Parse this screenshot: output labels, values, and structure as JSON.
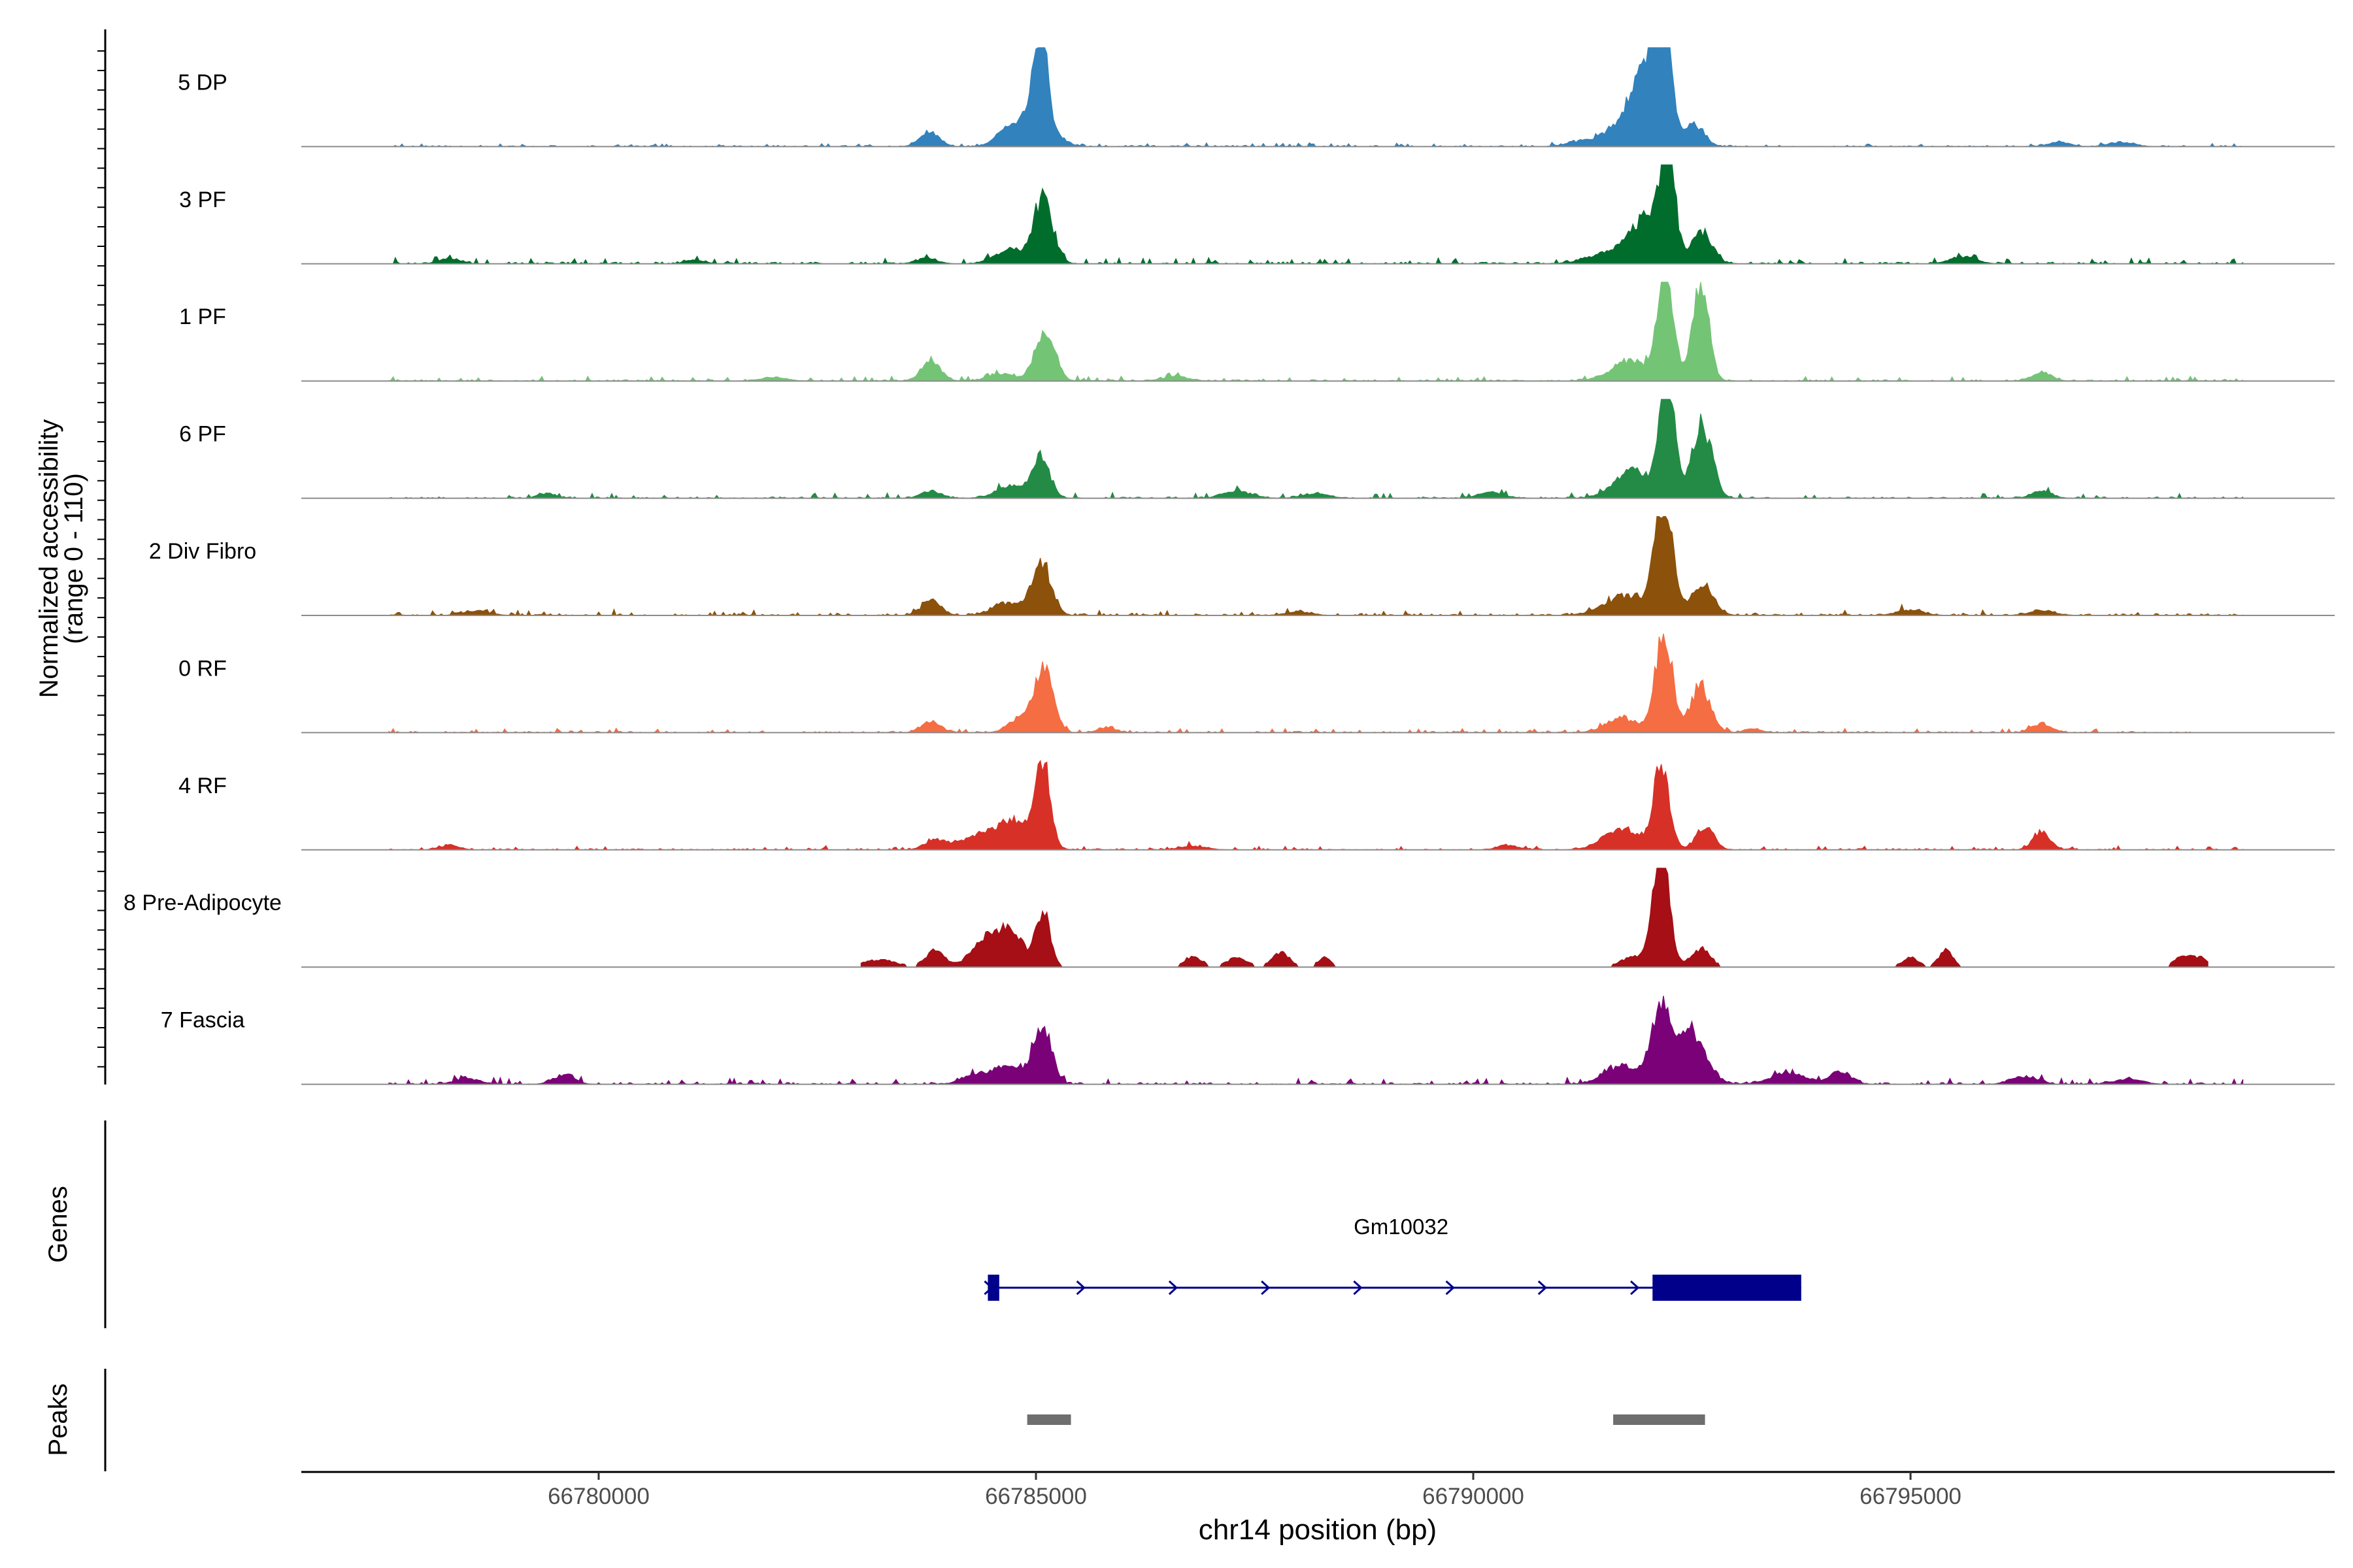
{
  "chart_data": {
    "type": "area",
    "ylabel_line1": "Normalized accessibility",
    "ylabel_line2": "(range 0 - 110)",
    "xlabel": "chr14 position (bp)",
    "xlim": [
      66776600,
      66799850
    ],
    "ylim": [
      0,
      110
    ],
    "x_ticks": [
      {
        "value": 66780000,
        "label": "66780000"
      },
      {
        "value": 66785000,
        "label": "66785000"
      },
      {
        "value": 66790000,
        "label": "66790000"
      },
      {
        "value": 66795000,
        "label": "66795000"
      }
    ],
    "tracks": [
      {
        "name": "5 DP",
        "color": "#3182bd",
        "range": [
          66777600,
          66798800
        ],
        "noise": 2,
        "noise_base": 1.5,
        "peaks": [
          [
            66785050,
            110,
            70
          ],
          [
            66785000,
            42,
            180
          ],
          [
            66784650,
            14,
            130
          ],
          [
            66783780,
            16,
            110
          ],
          [
            66792180,
            120,
            80
          ],
          [
            66792020,
            62,
            160
          ],
          [
            66791860,
            38,
            230
          ],
          [
            66792530,
            24,
            110
          ],
          [
            66791300,
            6,
            200
          ],
          [
            66796700,
            5,
            120
          ],
          [
            66797400,
            5,
            140
          ]
        ]
      },
      {
        "name": "3 PF",
        "color": "#006d2c",
        "range": [
          66777600,
          66798800
        ],
        "noise": 3.5,
        "noise_base": 2,
        "peaks": [
          [
            66785080,
            72,
            110
          ],
          [
            66784700,
            14,
            170
          ],
          [
            66783750,
            6,
            120
          ],
          [
            66792220,
            115,
            80
          ],
          [
            66792000,
            50,
            200
          ],
          [
            66792620,
            36,
            110
          ],
          [
            66791550,
            10,
            250
          ],
          [
            66795600,
            8,
            150
          ],
          [
            66778300,
            6,
            120
          ],
          [
            66781100,
            4,
            110
          ]
        ]
      },
      {
        "name": "1 PF",
        "color": "#74c476",
        "range": [
          66777600,
          66798800
        ],
        "noise": 3,
        "noise_base": 1.5,
        "peaks": [
          [
            66785100,
            55,
            110
          ],
          [
            66783800,
            22,
            110
          ],
          [
            66784600,
            8,
            150
          ],
          [
            66792200,
            125,
            90
          ],
          [
            66792600,
            110,
            90
          ],
          [
            66791800,
            22,
            220
          ],
          [
            66796500,
            10,
            110
          ],
          [
            66786600,
            5,
            150
          ],
          [
            66782000,
            4,
            150
          ]
        ]
      },
      {
        "name": "6 PF",
        "color": "#238b45",
        "range": [
          66777600,
          66798800
        ],
        "noise": 3.5,
        "noise_base": 1.5,
        "peaks": [
          [
            66785050,
            48,
            100
          ],
          [
            66784700,
            14,
            150
          ],
          [
            66783800,
            8,
            110
          ],
          [
            66792220,
            125,
            90
          ],
          [
            66792620,
            82,
            110
          ],
          [
            66791820,
            30,
            200
          ],
          [
            66787300,
            8,
            160
          ],
          [
            66779400,
            5,
            100
          ],
          [
            66796500,
            8,
            110
          ],
          [
            66788200,
            5,
            150
          ],
          [
            66790200,
            6,
            150
          ]
        ]
      },
      {
        "name": "2 Div Fibro",
        "color": "#8c510a",
        "range": [
          66777600,
          66798800
        ],
        "noise": 3.5,
        "noise_base": 2,
        "peaks": [
          [
            66785060,
            60,
            110
          ],
          [
            66784650,
            14,
            150
          ],
          [
            66783800,
            16,
            110
          ],
          [
            66792180,
            128,
            100
          ],
          [
            66791750,
            22,
            240
          ],
          [
            66792620,
            36,
            120
          ],
          [
            66778600,
            5,
            150
          ],
          [
            66795000,
            6,
            150
          ],
          [
            66796500,
            5,
            150
          ],
          [
            66788000,
            4,
            150
          ]
        ]
      },
      {
        "name": "0 RF",
        "color": "#f46d43",
        "range": [
          66777600,
          66798200
        ],
        "noise": 2.5,
        "noise_base": 1.5,
        "peaks": [
          [
            66785100,
            70,
            100
          ],
          [
            66784850,
            18,
            140
          ],
          [
            66783800,
            12,
            110
          ],
          [
            66792180,
            105,
            100
          ],
          [
            66792600,
            52,
            110
          ],
          [
            66791700,
            16,
            180
          ],
          [
            66796500,
            10,
            110
          ],
          [
            66785800,
            5,
            100
          ],
          [
            66793200,
            4,
            100
          ]
        ]
      },
      {
        "name": "4 RF",
        "color": "#d73027",
        "range": [
          66777600,
          66798800
        ],
        "noise": 2.5,
        "noise_base": 1.5,
        "peaks": [
          [
            66785080,
            90,
            80
          ],
          [
            66784750,
            32,
            220
          ],
          [
            66784300,
            12,
            200
          ],
          [
            66783850,
            10,
            120
          ],
          [
            66792150,
            90,
            90
          ],
          [
            66792650,
            26,
            100
          ],
          [
            66791700,
            22,
            210
          ],
          [
            66796500,
            18,
            100
          ],
          [
            66778300,
            5,
            110
          ],
          [
            66786800,
            4,
            150
          ],
          [
            66790400,
            5,
            120
          ]
        ]
      },
      {
        "name": "8 Pre-Adipocyte",
        "color": "#a50f15",
        "range": [
          66783000,
          66798400
        ],
        "noise": 0,
        "noise_base": 0,
        "peaks": [
          [
            66785080,
            60,
            80
          ],
          [
            66784700,
            42,
            150
          ],
          [
            66784400,
            28,
            150
          ],
          [
            66783850,
            18,
            110
          ],
          [
            66783200,
            8,
            200
          ],
          [
            66792150,
            128,
            90
          ],
          [
            66791850,
            12,
            150
          ],
          [
            66792600,
            20,
            110
          ],
          [
            66786800,
            12,
            100
          ],
          [
            66787300,
            10,
            120
          ],
          [
            66787800,
            16,
            100
          ],
          [
            66788300,
            10,
            80
          ],
          [
            66795000,
            10,
            100
          ],
          [
            66795400,
            18,
            80
          ],
          [
            66798100,
            10,
            100
          ],
          [
            66798300,
            10,
            100
          ]
        ]
      },
      {
        "name": "7 Fascia",
        "color": "#7a0177",
        "range": [
          66777600,
          66798800
        ],
        "noise": 4,
        "noise_base": 2,
        "peaks": [
          [
            66785080,
            65,
            100
          ],
          [
            66784700,
            22,
            170
          ],
          [
            66784300,
            10,
            150
          ],
          [
            66792150,
            85,
            110
          ],
          [
            66792500,
            58,
            160
          ],
          [
            66791700,
            20,
            200
          ],
          [
            66793600,
            12,
            200
          ],
          [
            66794200,
            14,
            120
          ],
          [
            66779600,
            10,
            120
          ],
          [
            66778500,
            6,
            150
          ],
          [
            66796300,
            8,
            150
          ],
          [
            66797500,
            6,
            150
          ]
        ]
      }
    ],
    "genes_label": "Genes",
    "gene": {
      "name": "Gm10032",
      "start": 66784450,
      "end": 66793750,
      "exons": [
        [
          66784450,
          66784580
        ],
        [
          66792050,
          66793750
        ]
      ],
      "strand": "+",
      "color": "#00008b"
    },
    "peaks_label": "Peaks",
    "peak_regions": [
      [
        66784900,
        66785400
      ],
      [
        66791600,
        66792650
      ]
    ],
    "peak_color": "#6e6e6e"
  }
}
